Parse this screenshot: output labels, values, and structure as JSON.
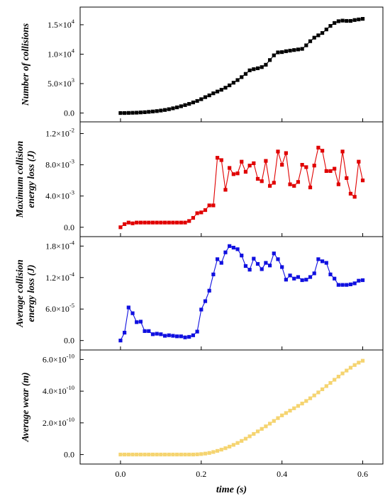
{
  "chart_data": {
    "type": "line",
    "xlabel": "time (s)",
    "xlim": [
      -0.1,
      0.65
    ],
    "xticks": [
      0.0,
      0.2,
      0.4,
      0.6
    ],
    "xtick_labels": [
      "0.0",
      "0.2",
      "0.4",
      "0.6"
    ],
    "grid": false,
    "legend": "none",
    "panels": [
      {
        "name": "collisions",
        "ylabel": [
          "Number of collisions"
        ],
        "ylim": [
          -1500,
          18000
        ],
        "yticks": [
          0,
          5000,
          10000,
          15000
        ],
        "ytick_labels": [
          {
            "mant": "0.0",
            "exp": ""
          },
          {
            "mant": "5.0×10",
            "exp": "3"
          },
          {
            "mant": "1.0×10",
            "exp": "4"
          },
          {
            "mant": "1.5×10",
            "exp": "4"
          }
        ],
        "series": [
          {
            "color": "#000000",
            "x": [
              0.0,
              0.01,
              0.02,
              0.03,
              0.04,
              0.05,
              0.06,
              0.07,
              0.08,
              0.09,
              0.1,
              0.11,
              0.12,
              0.13,
              0.14,
              0.15,
              0.16,
              0.17,
              0.18,
              0.19,
              0.2,
              0.21,
              0.22,
              0.23,
              0.24,
              0.25,
              0.26,
              0.27,
              0.28,
              0.29,
              0.3,
              0.31,
              0.32,
              0.33,
              0.34,
              0.35,
              0.36,
              0.37,
              0.38,
              0.39,
              0.4,
              0.41,
              0.42,
              0.43,
              0.44,
              0.45,
              0.46,
              0.47,
              0.48,
              0.49,
              0.5,
              0.51,
              0.52,
              0.53,
              0.54,
              0.55,
              0.56,
              0.57,
              0.58,
              0.59,
              0.6
            ],
            "y": [
              0,
              0,
              20,
              40,
              60,
              100,
              140,
              200,
              260,
              330,
              420,
              520,
              650,
              800,
              960,
              1150,
              1350,
              1550,
              1800,
              2050,
              2350,
              2700,
              3000,
              3350,
              3650,
              3950,
              4300,
              4700,
              5150,
              5600,
              6100,
              6650,
              7250,
              7450,
              7600,
              7800,
              8200,
              9000,
              9800,
              10300,
              10350,
              10500,
              10600,
              10700,
              10800,
              10900,
              11500,
              12200,
              12800,
              13200,
              13600,
              14200,
              14800,
              15300,
              15600,
              15700,
              15650,
              15650,
              15800,
              15900,
              16000
            ]
          }
        ]
      },
      {
        "name": "max-energy-loss",
        "ylabel": [
          "Maximum collision",
          "energy loss (J)"
        ],
        "ylim": [
          -0.0012,
          0.0135
        ],
        "yticks": [
          0,
          0.004,
          0.008,
          0.012
        ],
        "ytick_labels": [
          {
            "mant": "0.0",
            "exp": ""
          },
          {
            "mant": "4.0×10",
            "exp": "-3"
          },
          {
            "mant": "8.0×10",
            "exp": "-3"
          },
          {
            "mant": "1.2×10",
            "exp": "-2"
          }
        ],
        "series": [
          {
            "color": "#e00000",
            "x": [
              0.0,
              0.01,
              0.02,
              0.03,
              0.04,
              0.05,
              0.06,
              0.07,
              0.08,
              0.09,
              0.1,
              0.11,
              0.12,
              0.13,
              0.14,
              0.15,
              0.16,
              0.17,
              0.18,
              0.19,
              0.2,
              0.21,
              0.22,
              0.23,
              0.24,
              0.25,
              0.26,
              0.27,
              0.28,
              0.29,
              0.3,
              0.31,
              0.32,
              0.33,
              0.34,
              0.35,
              0.36,
              0.37,
              0.38,
              0.39,
              0.4,
              0.41,
              0.42,
              0.43,
              0.44,
              0.45,
              0.46,
              0.47,
              0.48,
              0.49,
              0.5,
              0.51,
              0.52,
              0.53,
              0.54,
              0.55,
              0.56,
              0.57,
              0.58,
              0.59,
              0.6
            ],
            "y": [
              0.0,
              0.0004,
              0.0006,
              0.0005,
              0.0006,
              0.0006,
              0.0006,
              0.0006,
              0.0006,
              0.0006,
              0.0006,
              0.0006,
              0.0006,
              0.0006,
              0.0006,
              0.0006,
              0.0006,
              0.0008,
              0.0012,
              0.0018,
              0.0019,
              0.0022,
              0.0028,
              0.0028,
              0.0089,
              0.0086,
              0.0048,
              0.0076,
              0.0068,
              0.0069,
              0.0084,
              0.0071,
              0.0079,
              0.0082,
              0.0062,
              0.0059,
              0.0085,
              0.0053,
              0.0057,
              0.0097,
              0.008,
              0.0095,
              0.0055,
              0.0053,
              0.0058,
              0.008,
              0.0077,
              0.0051,
              0.0079,
              0.0102,
              0.0098,
              0.0072,
              0.0072,
              0.0075,
              0.0055,
              0.0097,
              0.0063,
              0.0043,
              0.0039,
              0.0084,
              0.006
            ]
          }
        ]
      },
      {
        "name": "avg-energy-loss",
        "ylabel": [
          "Average collision",
          "energy loss (J)"
        ],
        "ylim": [
          -1.8e-05,
          0.000198
        ],
        "yticks": [
          0,
          6e-05,
          0.00012,
          0.00018
        ],
        "ytick_labels": [
          {
            "mant": "0.0",
            "exp": ""
          },
          {
            "mant": "6.0×10",
            "exp": "-5"
          },
          {
            "mant": "1.2×10",
            "exp": "-4"
          },
          {
            "mant": "1.8×10",
            "exp": "-4"
          }
        ],
        "series": [
          {
            "color": "#1010e0",
            "x": [
              0.0,
              0.01,
              0.02,
              0.03,
              0.04,
              0.05,
              0.06,
              0.07,
              0.08,
              0.09,
              0.1,
              0.11,
              0.12,
              0.13,
              0.14,
              0.15,
              0.16,
              0.17,
              0.18,
              0.19,
              0.2,
              0.21,
              0.22,
              0.23,
              0.24,
              0.25,
              0.26,
              0.27,
              0.28,
              0.29,
              0.3,
              0.31,
              0.32,
              0.33,
              0.34,
              0.35,
              0.36,
              0.37,
              0.38,
              0.39,
              0.4,
              0.41,
              0.42,
              0.43,
              0.44,
              0.45,
              0.46,
              0.47,
              0.48,
              0.49,
              0.5,
              0.51,
              0.52,
              0.53,
              0.54,
              0.55,
              0.56,
              0.57,
              0.58,
              0.59,
              0.6
            ],
            "y": [
              0.0,
              1.5e-05,
              6.3e-05,
              5.2e-05,
              3.5e-05,
              3.6e-05,
              1.8e-05,
              1.8e-05,
              1.2e-05,
              1.3e-05,
              1.2e-05,
              9e-06,
              1e-05,
              9e-06,
              8e-06,
              8e-06,
              6e-06,
              7e-06,
              1e-05,
              1.7e-05,
              5.9e-05,
              7.5e-05,
              9.5e-05,
              0.000126,
              0.000155,
              0.000148,
              0.000168,
              0.00018,
              0.000177,
              0.000174,
              0.000162,
              0.000142,
              0.000135,
              0.000156,
              0.000146,
              0.000136,
              0.000148,
              0.000143,
              0.000166,
              0.000155,
              0.00014,
              0.000116,
              0.000124,
              0.000118,
              0.000121,
              0.000115,
              0.000116,
              0.000121,
              0.000128,
              0.000155,
              0.000151,
              0.000148,
              0.000126,
              0.000118,
              0.000106,
              0.000106,
              0.000106,
              0.000107,
              0.000109,
              0.000114,
              0.000115
            ]
          }
        ]
      },
      {
        "name": "avg-wear",
        "ylabel": [
          "Average wear (m)"
        ],
        "ylim": [
          -6e-11,
          6.6e-10
        ],
        "yticks": [
          0,
          2e-10,
          4e-10,
          6e-10
        ],
        "ytick_labels": [
          {
            "mant": "0.0",
            "exp": ""
          },
          {
            "mant": "2.0×10",
            "exp": "-10"
          },
          {
            "mant": "4.0×10",
            "exp": "-10"
          },
          {
            "mant": "6.0×10",
            "exp": "-10"
          }
        ],
        "series": [
          {
            "color": "#f5d470",
            "x": [
              0.0,
              0.01,
              0.02,
              0.03,
              0.04,
              0.05,
              0.06,
              0.07,
              0.08,
              0.09,
              0.1,
              0.11,
              0.12,
              0.13,
              0.14,
              0.15,
              0.16,
              0.17,
              0.18,
              0.19,
              0.2,
              0.21,
              0.22,
              0.23,
              0.24,
              0.25,
              0.26,
              0.27,
              0.28,
              0.29,
              0.3,
              0.31,
              0.32,
              0.33,
              0.34,
              0.35,
              0.36,
              0.37,
              0.38,
              0.39,
              0.4,
              0.41,
              0.42,
              0.43,
              0.44,
              0.45,
              0.46,
              0.47,
              0.48,
              0.49,
              0.5,
              0.51,
              0.52,
              0.53,
              0.54,
              0.55,
              0.56,
              0.57,
              0.58,
              0.59,
              0.6
            ],
            "y": [
              0.0,
              0.0,
              0.0,
              0.0,
              0.0,
              0.0,
              0.0,
              0.0,
              0.0,
              0.0,
              0.0,
              0.0,
              0.0,
              0.0,
              0.0,
              0.0,
              0.0,
              0.0,
              0.0,
              1e-12,
              3e-12,
              6e-12,
              1e-11,
              1.6e-11,
              2.3e-11,
              3.1e-11,
              4e-11,
              5e-11,
              6.1e-11,
              7.3e-11,
              8.6e-11,
              1e-10,
              1.15e-10,
              1.3e-10,
              1.46e-10,
              1.62e-10,
              1.78e-10,
              1.95e-10,
              2.12e-10,
              2.3e-10,
              2.47e-10,
              2.62e-10,
              2.77e-10,
              2.92e-10,
              3.07e-10,
              3.22e-10,
              3.38e-10,
              3.55e-10,
              3.73e-10,
              3.92e-10,
              4.12e-10,
              4.32e-10,
              4.52e-10,
              4.72e-10,
              4.92e-10,
              5.12e-10,
              5.3e-10,
              5.48e-10,
              5.65e-10,
              5.8e-10,
              5.92e-10
            ]
          }
        ]
      }
    ]
  }
}
